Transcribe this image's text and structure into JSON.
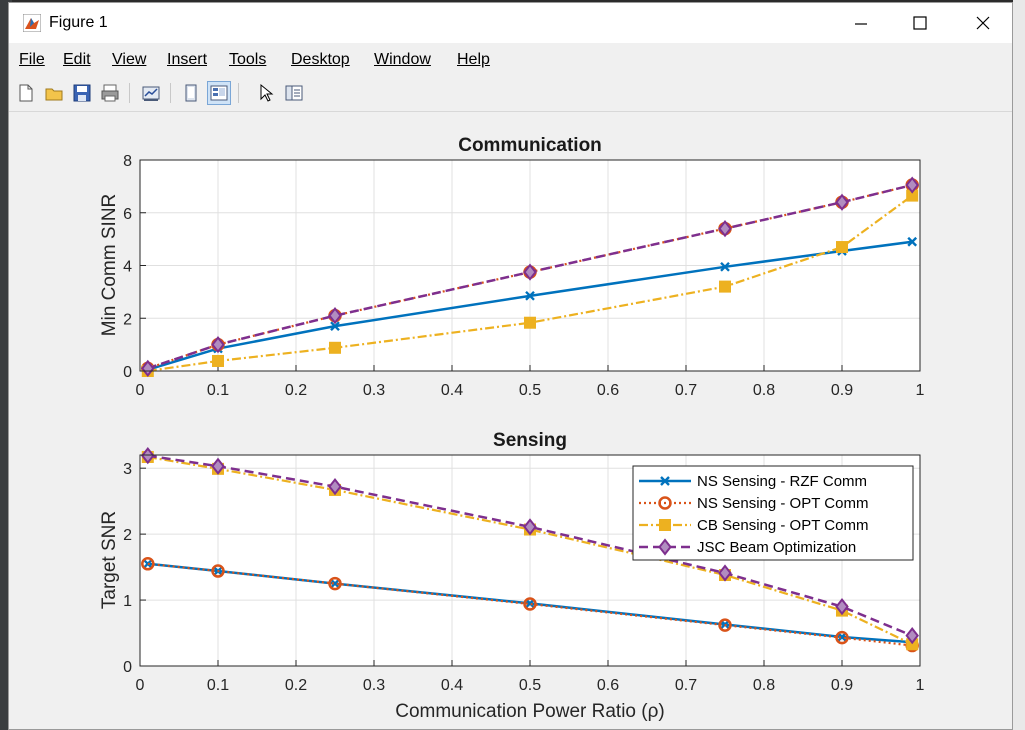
{
  "window": {
    "title": "Figure 1",
    "icon": "matlab-figure-icon"
  },
  "menu": [
    "File",
    "Edit",
    "View",
    "Insert",
    "Tools",
    "Desktop",
    "Window",
    "Help"
  ],
  "toolbar_icons": [
    "new-figure-icon",
    "open-file-icon",
    "save-icon",
    "print-icon",
    "link-plot-icon",
    "hide-plot-tools-icon",
    "show-plot-tools-icon",
    "edit-plot-icon",
    "open-property-inspector-icon"
  ],
  "colors": {
    "s1": "#0072bd",
    "s2": "#d95319",
    "s3": "#edb120",
    "s4": "#7e2f8e"
  },
  "chart_data": [
    {
      "type": "line",
      "title": "Communication",
      "xlabel": "",
      "ylabel": "Min Comm SINR",
      "xlim": [
        0,
        1
      ],
      "ylim": [
        0,
        8
      ],
      "xticks": [
        "0",
        "0.1",
        "0.2",
        "0.3",
        "0.4",
        "0.5",
        "0.6",
        "0.7",
        "0.8",
        "0.9",
        "1"
      ],
      "yticks": [
        "0",
        "2",
        "4",
        "6",
        "8"
      ],
      "grid": true,
      "x": [
        0.01,
        0.1,
        0.25,
        0.5,
        0.75,
        0.9,
        0.99
      ],
      "series": [
        {
          "name": "NS Sensing - RZF Comm",
          "values": [
            0.05,
            0.85,
            1.7,
            2.85,
            3.95,
            4.55,
            4.9
          ]
        },
        {
          "name": "NS Sensing - OPT Comm",
          "values": [
            0.1,
            1.0,
            2.1,
            3.75,
            5.4,
            6.4,
            7.05
          ]
        },
        {
          "name": "CB Sensing - OPT Comm",
          "values": [
            0.0,
            0.38,
            0.88,
            1.83,
            3.2,
            4.7,
            6.65
          ]
        },
        {
          "name": "JSC Beam Optimization",
          "values": [
            0.1,
            1.0,
            2.1,
            3.75,
            5.4,
            6.4,
            7.05
          ]
        }
      ]
    },
    {
      "type": "line",
      "title": "Sensing",
      "xlabel": "Communication Power Ratio (ρ)",
      "ylabel": "Target SNR",
      "xlim": [
        0,
        1
      ],
      "ylim": [
        0,
        3.2
      ],
      "xticks": [
        "0",
        "0.1",
        "0.2",
        "0.3",
        "0.4",
        "0.5",
        "0.6",
        "0.7",
        "0.8",
        "0.9",
        "1"
      ],
      "yticks": [
        "0",
        "1",
        "2",
        "3"
      ],
      "grid": true,
      "legend_position": "top-right",
      "x": [
        0.01,
        0.1,
        0.25,
        0.5,
        0.75,
        0.9,
        0.99
      ],
      "series": [
        {
          "name": "NS Sensing - RZF Comm",
          "values": [
            1.55,
            1.44,
            1.25,
            0.95,
            0.63,
            0.44,
            0.36
          ]
        },
        {
          "name": "NS Sensing - OPT Comm",
          "values": [
            1.55,
            1.44,
            1.25,
            0.94,
            0.62,
            0.43,
            0.31
          ]
        },
        {
          "name": "CB Sensing - OPT Comm",
          "values": [
            3.17,
            2.99,
            2.67,
            2.07,
            1.38,
            0.84,
            0.33
          ]
        },
        {
          "name": "JSC Beam Optimization",
          "values": [
            3.19,
            3.03,
            2.72,
            2.11,
            1.41,
            0.9,
            0.46
          ]
        }
      ]
    }
  ]
}
